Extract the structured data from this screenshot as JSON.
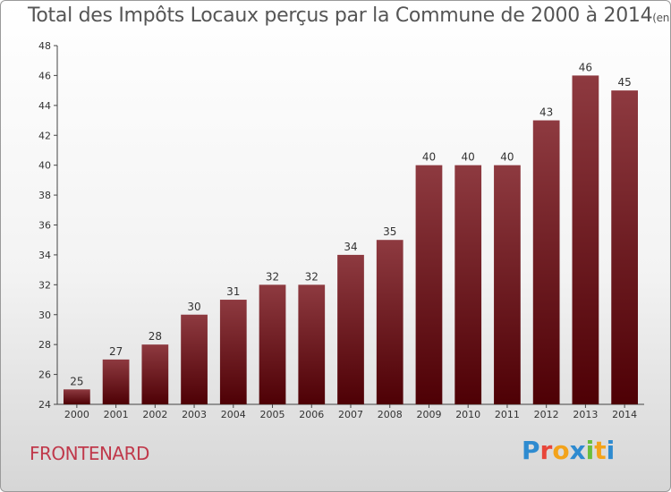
{
  "title": "Total des Impôts Locaux perçus par la Commune de 2000 à 2014",
  "unit_note": "(en milliers d'€)",
  "commune": "FRONTENARD",
  "brand": {
    "letters": [
      "P",
      "r",
      "o",
      "x",
      "i",
      "t",
      "i"
    ],
    "colors": [
      "#2e8bd0",
      "#e8463a",
      "#f3a31b",
      "#2e8bd0",
      "#6abf3b",
      "#f3a31b",
      "#2e8bd0"
    ]
  },
  "chart_data": {
    "type": "bar",
    "categories": [
      "2000",
      "2001",
      "2002",
      "2003",
      "2004",
      "2005",
      "2006",
      "2007",
      "2008",
      "2009",
      "2010",
      "2011",
      "2012",
      "2013",
      "2014"
    ],
    "values": [
      25,
      27,
      28,
      30,
      31,
      32,
      32,
      34,
      35,
      40,
      40,
      40,
      43,
      46,
      45
    ],
    "ylim": [
      24,
      48
    ],
    "yticks": [
      24,
      26,
      28,
      30,
      32,
      34,
      36,
      38,
      40,
      42,
      44,
      46,
      48
    ],
    "grid": false,
    "bar_color": "#7a1e24"
  }
}
